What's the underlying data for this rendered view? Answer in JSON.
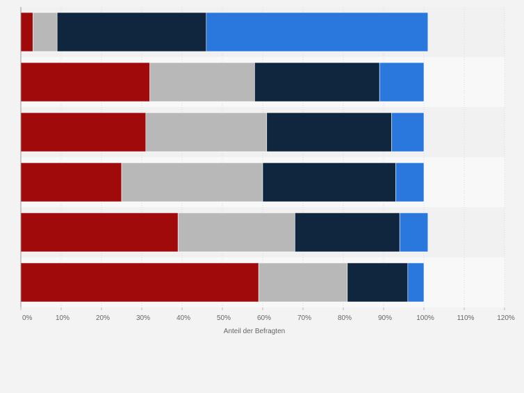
{
  "chart_data": {
    "type": "bar",
    "orientation": "horizontal",
    "stacked": true,
    "categories": [
      "",
      "",
      "",
      "",
      "",
      ""
    ],
    "series": [
      {
        "color": "#a10a0a",
        "values": [
          3,
          32,
          31,
          25,
          39,
          59
        ]
      },
      {
        "color": "#b8b8b8",
        "values": [
          6,
          26,
          30,
          35,
          29,
          22
        ]
      },
      {
        "color": "#10263f",
        "values": [
          37,
          31,
          31,
          33,
          26,
          15
        ]
      },
      {
        "color": "#2a78de",
        "values": [
          55,
          11,
          8,
          7,
          7,
          4
        ]
      }
    ],
    "xlabel": "Anteil der Befragten",
    "ylabel": "",
    "xlim": [
      0,
      120
    ],
    "x_ticks": [
      "0%",
      "10%",
      "20%",
      "30%",
      "40%",
      "50%",
      "60%",
      "70%",
      "80%",
      "90%",
      "100%",
      "110%",
      "120%"
    ],
    "grid": true,
    "legend": "none"
  }
}
